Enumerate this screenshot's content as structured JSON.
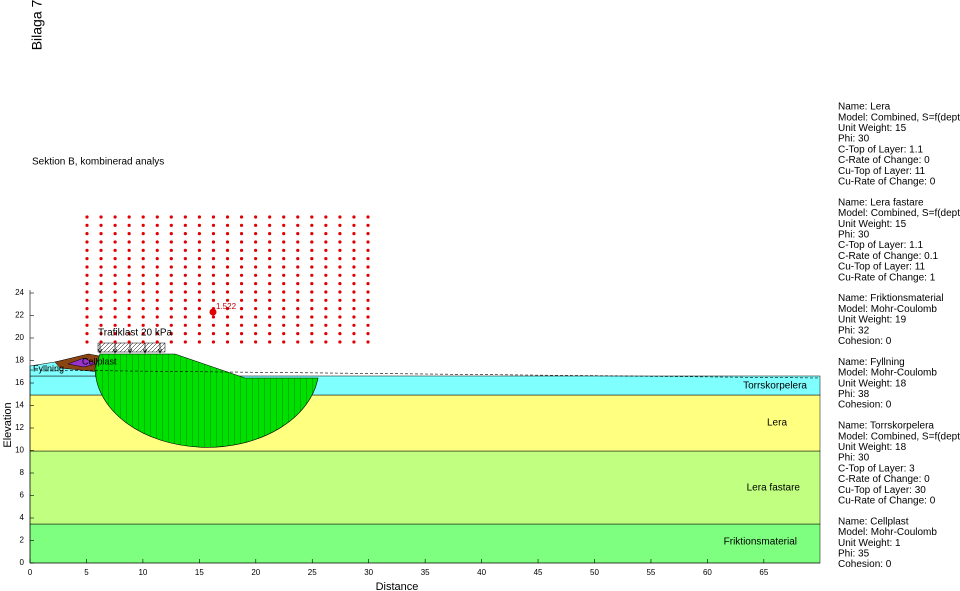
{
  "appendix": "Bilaga 7",
  "title": "Sektion B, kombinerad analys",
  "axes": {
    "xlabel": "Distance",
    "ylabel": "Elevation",
    "xticks": [
      0,
      5,
      10,
      15,
      20,
      25,
      30,
      35,
      40,
      45,
      50,
      55,
      60,
      65
    ],
    "yticks": [
      0,
      2,
      4,
      6,
      8,
      10,
      12,
      14,
      16,
      18,
      20,
      22,
      24
    ]
  },
  "annotations": {
    "load": "Trafiklast 20 kPa",
    "fill": "Fyllning",
    "cellplast": "Cellplast",
    "factor_of_safety": "1.522"
  },
  "layer_labels": [
    "Torrskorpelera",
    "Lera",
    "Lera fastare",
    "Friktionsmaterial"
  ],
  "materials": [
    [
      "Name: Lera",
      "Model: Combined, S=f(depth)",
      "Unit Weight: 15",
      "Phi: 30",
      "C-Top of Layer: 1.1",
      "C-Rate of Change: 0",
      "Cu-Top of Layer: 11",
      "Cu-Rate of Change: 0"
    ],
    [
      "Name: Lera fastare",
      "Model: Combined, S=f(depth)",
      "Unit Weight: 15",
      "Phi: 30",
      "C-Top of Layer: 1.1",
      "C-Rate of Change: 0.1",
      "Cu-Top of Layer: 11",
      "Cu-Rate of Change: 1"
    ],
    [
      "Name: Friktionsmaterial",
      "Model: Mohr-Coulomb",
      "Unit Weight: 19",
      "Phi: 32",
      "Cohesion: 0"
    ],
    [
      "Name: Fyllning",
      "Model: Mohr-Coulomb",
      "Unit Weight: 18",
      "Phi: 38",
      "Cohesion: 0"
    ],
    [
      "Name: Torrskorpelera",
      "Model: Combined, S=f(depth)",
      "Unit Weight: 18",
      "Phi: 30",
      "C-Top of Layer: 3",
      "C-Rate of Change: 0",
      "Cu-Top of Layer: 30",
      "Cu-Rate of Change: 0"
    ],
    [
      "Name: Cellplast",
      "Model: Mohr-Coulomb",
      "Unit Weight: 1",
      "Phi: 35",
      "Cohesion: 0"
    ]
  ]
}
